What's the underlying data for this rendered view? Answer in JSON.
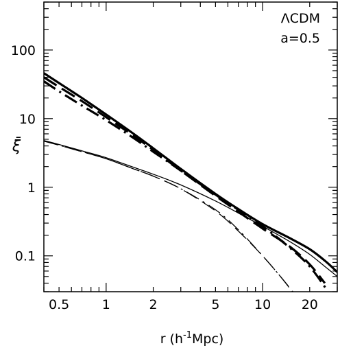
{
  "chart_data": {
    "type": "line",
    "xscale": "log",
    "yscale": "log",
    "xlim": [
      0.4,
      30
    ],
    "ylim": [
      0.03,
      500
    ],
    "xlabel": "r (h^{-1}Mpc)",
    "ylabel": "ξ̄",
    "annotations": [
      "ΛCDM",
      "a=0.5"
    ],
    "x_ticks": [
      {
        "v": 0.5,
        "label": "0.5"
      },
      {
        "v": 1,
        "label": "1"
      },
      {
        "v": 2,
        "label": "2"
      },
      {
        "v": 5,
        "label": "5"
      },
      {
        "v": 10,
        "label": "10"
      },
      {
        "v": 20,
        "label": "20"
      }
    ],
    "y_ticks": [
      {
        "v": 0.1,
        "label": "0.1"
      },
      {
        "v": 1,
        "label": "1"
      },
      {
        "v": 10,
        "label": "10"
      },
      {
        "v": 100,
        "label": "100"
      }
    ],
    "series": [
      {
        "style": "solid",
        "weight": "thick",
        "x": [
          0.4,
          0.5,
          0.7,
          1,
          1.5,
          2,
          3,
          5,
          7,
          10,
          15,
          20,
          25,
          30
        ],
        "y": [
          46,
          33,
          20,
          11.5,
          6.0,
          3.7,
          1.85,
          0.8,
          0.48,
          0.29,
          0.18,
          0.125,
          0.085,
          0.058
        ]
      },
      {
        "style": "dash",
        "weight": "thick",
        "x": [
          0.4,
          0.5,
          0.7,
          1,
          1.5,
          2,
          3,
          5,
          7,
          10,
          15,
          20,
          25
        ],
        "y": [
          40,
          29,
          18,
          10.5,
          5.6,
          3.5,
          1.75,
          0.75,
          0.44,
          0.25,
          0.135,
          0.075,
          0.04
        ]
      },
      {
        "style": "dashdot",
        "weight": "thick",
        "x": [
          0.4,
          0.5,
          0.7,
          1,
          1.5,
          2,
          3,
          5,
          7,
          10,
          15,
          20,
          26
        ],
        "y": [
          35,
          25,
          15.5,
          9.5,
          5.2,
          3.3,
          1.75,
          0.78,
          0.47,
          0.27,
          0.13,
          0.07,
          0.031
        ]
      },
      {
        "style": "solid",
        "weight": "thin",
        "x": [
          0.4,
          0.5,
          0.7,
          1,
          1.5,
          2,
          3,
          5,
          7,
          10,
          15,
          20,
          25,
          30
        ],
        "y": [
          4.8,
          4.2,
          3.4,
          2.7,
          1.95,
          1.55,
          1.08,
          0.63,
          0.42,
          0.27,
          0.16,
          0.105,
          0.07,
          0.05
        ]
      },
      {
        "style": "dash",
        "weight": "thin",
        "x": [
          0.4,
          0.5,
          0.7,
          1,
          1.5,
          2,
          3,
          5,
          7,
          10,
          13,
          16
        ],
        "y": [
          4.7,
          4.1,
          3.3,
          2.6,
          1.85,
          1.45,
          0.95,
          0.45,
          0.23,
          0.1,
          0.05,
          0.028
        ]
      },
      {
        "style": "dashdot",
        "weight": "thin",
        "x": [
          0.4,
          0.5,
          0.7,
          1,
          1.5,
          2,
          3,
          5,
          7,
          10,
          13,
          15.5
        ],
        "y": [
          4.7,
          4.1,
          3.3,
          2.6,
          1.85,
          1.45,
          0.95,
          0.47,
          0.24,
          0.1,
          0.05,
          0.03
        ]
      }
    ]
  }
}
